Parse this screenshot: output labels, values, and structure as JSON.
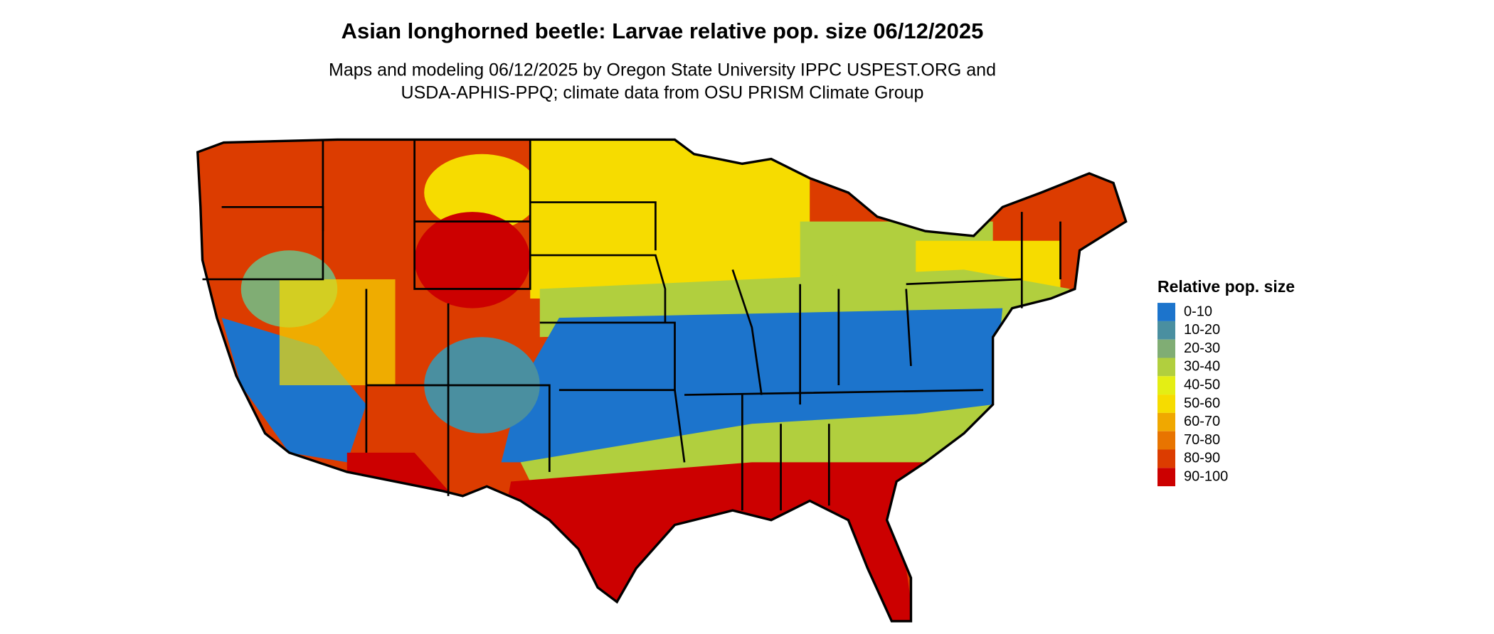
{
  "header": {
    "title": "Asian longhorned beetle: Larvae relative pop. size 06/12/2025",
    "subtitle": [
      "Maps and modeling 06/12/2025 by Oregon State University IPPC USPEST.ORG and",
      "USDA-APHIS-PPQ; climate data from OSU PRISM Climate Group"
    ]
  },
  "legend": {
    "title": "Relative pop. size",
    "items": [
      {
        "label": "0-10",
        "color": "#1c74cc"
      },
      {
        "label": "10-20",
        "color": "#4a8fa0"
      },
      {
        "label": "20-30",
        "color": "#80ad74"
      },
      {
        "label": "30-40",
        "color": "#b1cf3e"
      },
      {
        "label": "40-50",
        "color": "#e4ee14"
      },
      {
        "label": "50-60",
        "color": "#f6dc00"
      },
      {
        "label": "60-70",
        "color": "#f0a800"
      },
      {
        "label": "70-80",
        "color": "#e87400"
      },
      {
        "label": "80-90",
        "color": "#dc3c00"
      },
      {
        "label": "90-100",
        "color": "#cc0000"
      }
    ]
  }
}
